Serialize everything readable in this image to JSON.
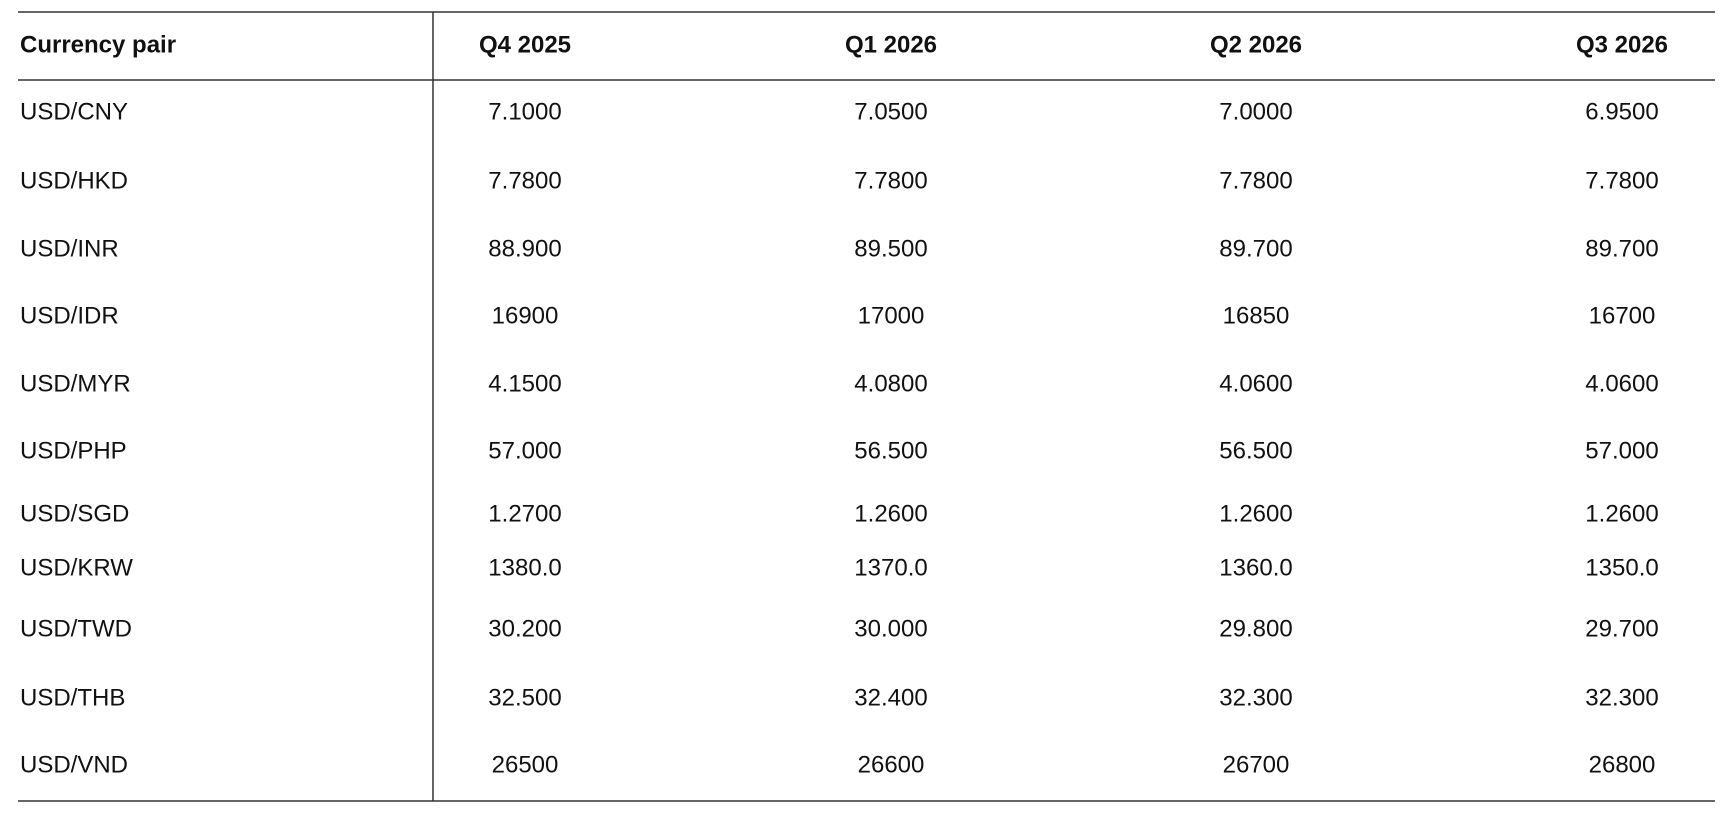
{
  "table": {
    "header": [
      "Currency pair",
      "Q4 2025",
      "Q1 2026",
      "Q2 2026",
      "Q3 2026"
    ],
    "rows": [
      [
        "USD/CNY",
        "7.1000",
        "7.0500",
        "7.0000",
        "6.9500"
      ],
      [
        "USD/HKD",
        "7.7800",
        "7.7800",
        "7.7800",
        "7.7800"
      ],
      [
        "USD/INR",
        "88.900",
        "89.500",
        "89.700",
        "89.700"
      ],
      [
        "USD/IDR",
        "16900",
        "17000",
        "16850",
        "16700"
      ],
      [
        "USD/MYR",
        "4.1500",
        "4.0800",
        "4.0600",
        "4.0600"
      ],
      [
        "USD/PHP",
        "57.000",
        "56.500",
        "56.500",
        "57.000"
      ],
      [
        "USD/SGD",
        "1.2700",
        "1.2600",
        "1.2600",
        "1.2600"
      ],
      [
        "USD/KRW",
        "1380.0",
        "1370.0",
        "1360.0",
        "1350.0"
      ],
      [
        "USD/TWD",
        "30.200",
        "30.000",
        "29.800",
        "29.700"
      ],
      [
        "USD/THB",
        "32.500",
        "32.400",
        "32.300",
        "32.300"
      ],
      [
        "USD/VND",
        "26500",
        "26600",
        "26700",
        "26800"
      ]
    ]
  }
}
